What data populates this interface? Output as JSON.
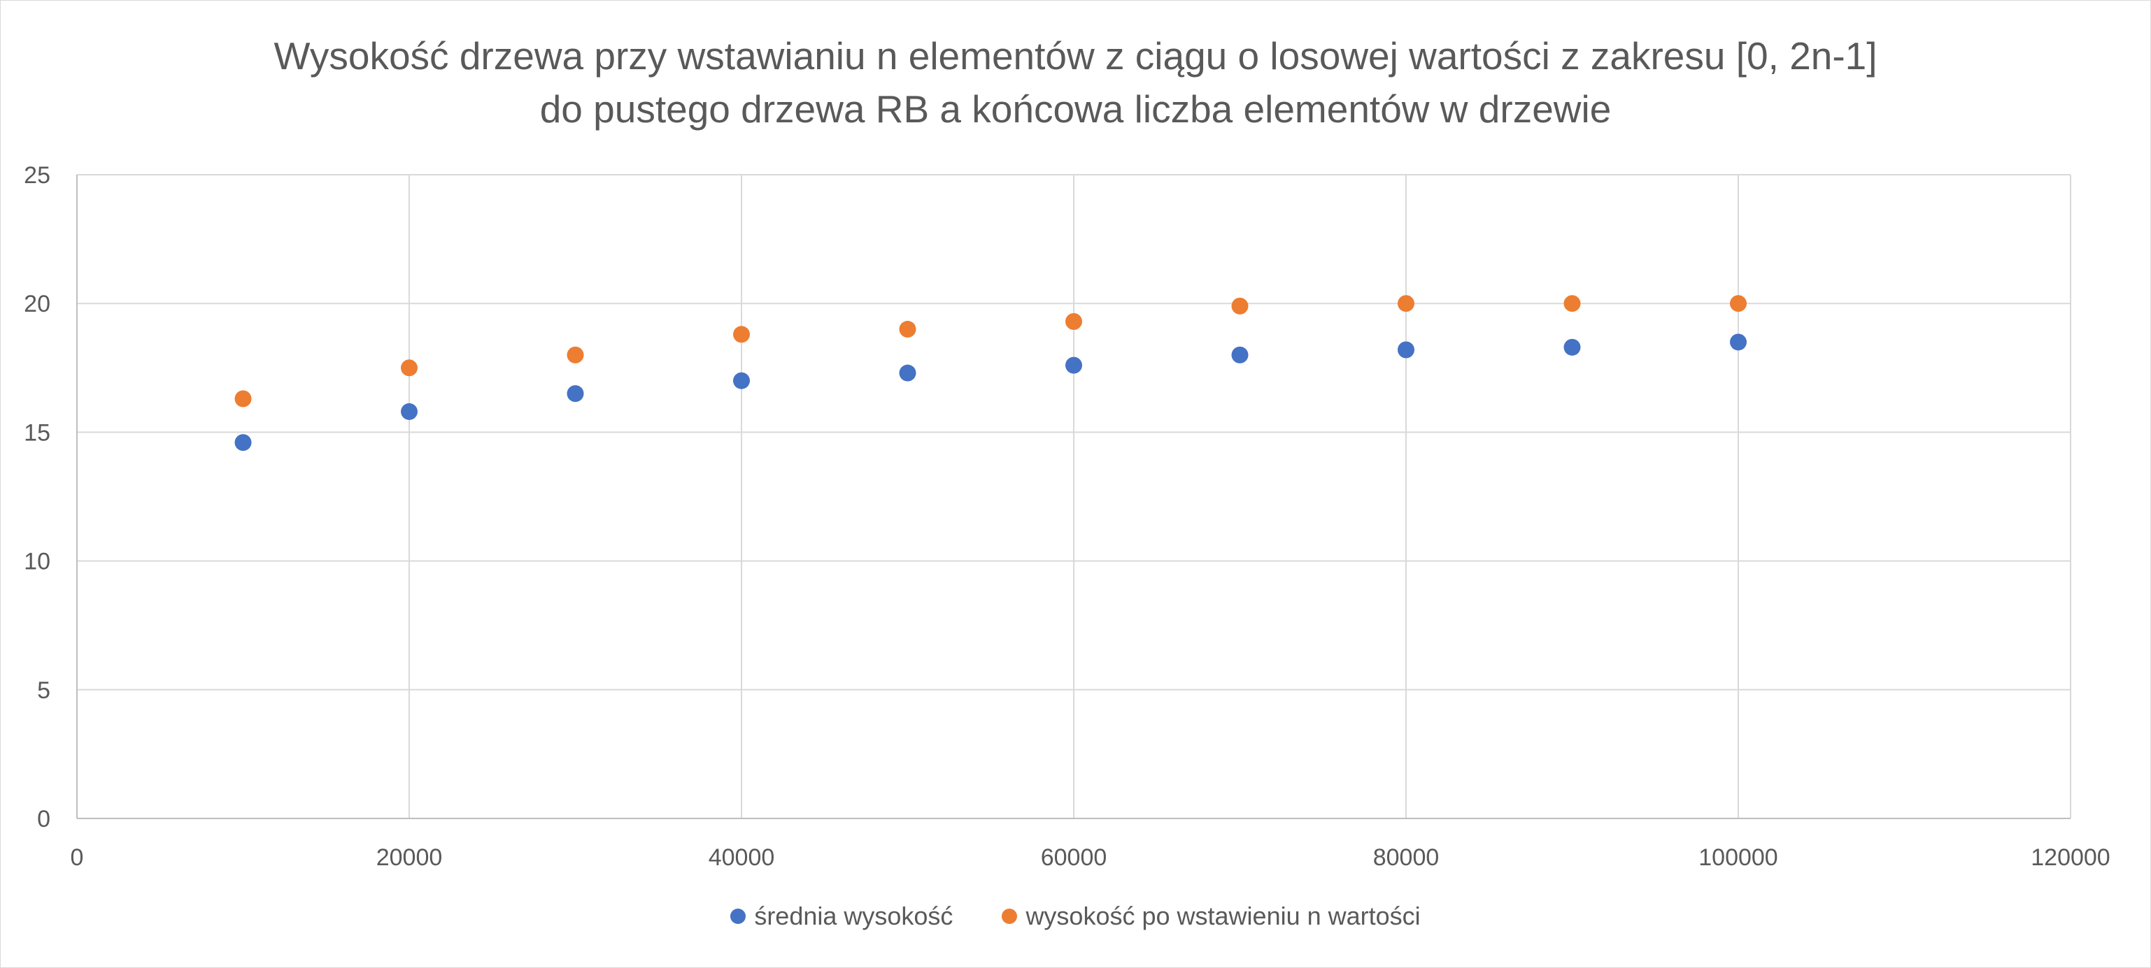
{
  "chart_data": {
    "type": "scatter",
    "title": "Wysokość drzewa przy wstawianiu n elementów z ciągu o losowej wartości z zakresu [0, 2n-1]",
    "subtitle": "do pustego drzewa RB a końcowa liczba elementów w drzewie",
    "xlim": [
      0,
      120000
    ],
    "ylim": [
      0,
      25
    ],
    "x_ticks": [
      0,
      20000,
      40000,
      60000,
      80000,
      100000,
      120000
    ],
    "y_ticks": [
      0,
      5,
      10,
      15,
      20,
      25
    ],
    "x_tick_labels": [
      "0",
      "20000",
      "40000",
      "60000",
      "80000",
      "100000",
      "120000"
    ],
    "y_tick_labels": [
      "0",
      "5",
      "10",
      "15",
      "20",
      "25"
    ],
    "grid": true,
    "legend_position": "bottom",
    "series": [
      {
        "name": "średnia wysokość",
        "color": "#4472c4",
        "x": [
          10000,
          20000,
          30000,
          40000,
          50000,
          60000,
          70000,
          80000,
          90000,
          100000
        ],
        "y": [
          14.6,
          15.8,
          16.5,
          17.0,
          17.3,
          17.6,
          18.0,
          18.2,
          18.3,
          18.5
        ]
      },
      {
        "name": "wysokość po wstawieniu n wartości",
        "color": "#ed7d31",
        "x": [
          10000,
          20000,
          30000,
          40000,
          50000,
          60000,
          70000,
          80000,
          90000,
          100000
        ],
        "y": [
          16.3,
          17.5,
          18.0,
          18.8,
          19.0,
          19.3,
          19.9,
          20.0,
          20.0,
          20.0
        ]
      }
    ]
  },
  "colors": {
    "grid": "#d9d9d9",
    "axis_text": "#595959"
  }
}
